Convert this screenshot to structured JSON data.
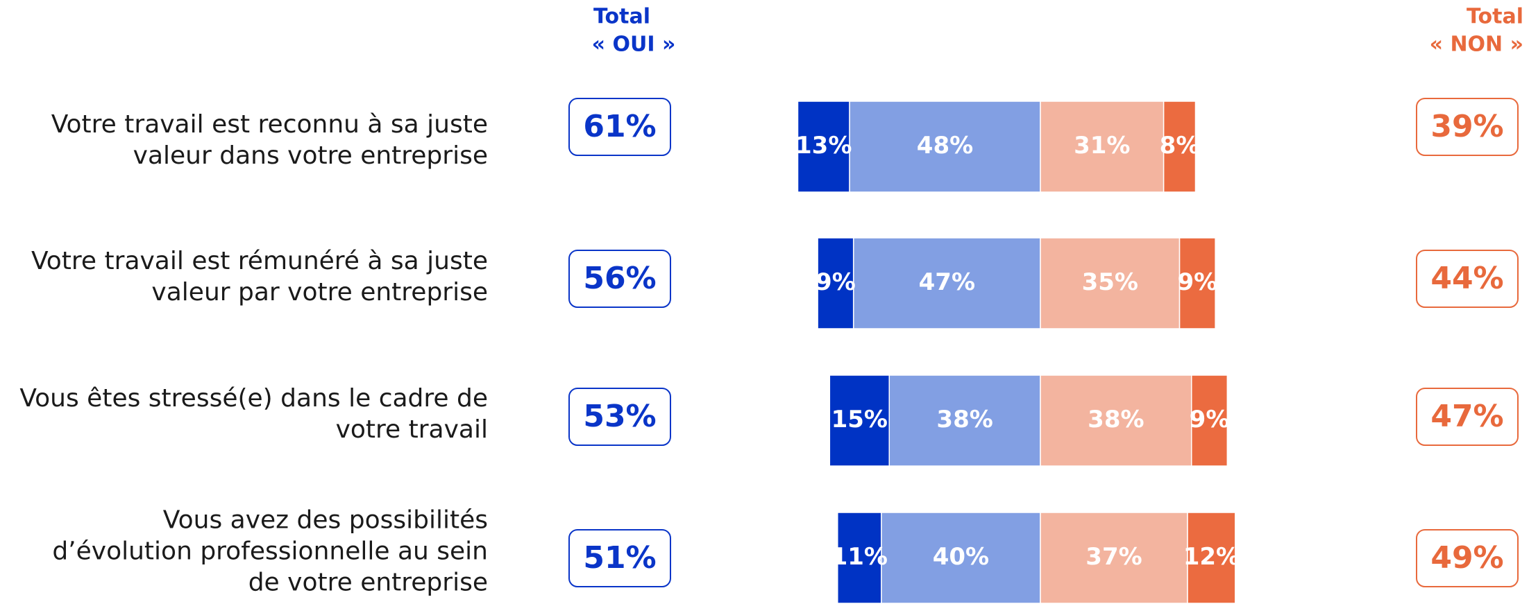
{
  "chart_data": {
    "type": "diverging_bar",
    "header_yes": [
      "Total",
      "« OUI »"
    ],
    "header_no": [
      "Total",
      "« NON »"
    ],
    "categories": [
      [
        "Votre travail est reconnu à sa juste",
        "valeur dans votre entreprise"
      ],
      [
        "Votre travail est rémunéré à sa juste",
        "valeur par votre entreprise"
      ],
      [
        "Vous êtes stressé(e) dans le cadre de",
        "votre travail"
      ],
      [
        "Vous avez des possibilités",
        "d’évolution professionnelle au sein",
        "de votre entreprise"
      ]
    ],
    "series": [
      {
        "color": "#0033c4",
        "values": [
          13,
          9,
          15,
          11
        ],
        "value_labels": [
          "13%",
          "9%",
          "15%",
          "11%"
        ]
      },
      {
        "color": "#829fe3",
        "values": [
          48,
          47,
          38,
          40
        ],
        "value_labels": [
          "48%",
          "47%",
          "38%",
          "40%"
        ]
      },
      {
        "color": "#f3b49f",
        "values": [
          31,
          35,
          38,
          37
        ],
        "value_labels": [
          "31%",
          "35%",
          "38%",
          "37%"
        ]
      },
      {
        "color": "#eb6b40",
        "values": [
          8,
          9,
          9,
          12
        ],
        "value_labels": [
          "8%",
          "9%",
          "9%",
          "12%"
        ]
      }
    ],
    "total_yes": {
      "color": "#0a35c8",
      "values": [
        61,
        56,
        53,
        51
      ],
      "value_labels": [
        "61%",
        "56%",
        "53%",
        "51%"
      ]
    },
    "total_no": {
      "color": "#e8693c",
      "values": [
        39,
        44,
        47,
        49
      ],
      "value_labels": [
        "39%",
        "44%",
        "47%",
        "49%"
      ]
    }
  }
}
